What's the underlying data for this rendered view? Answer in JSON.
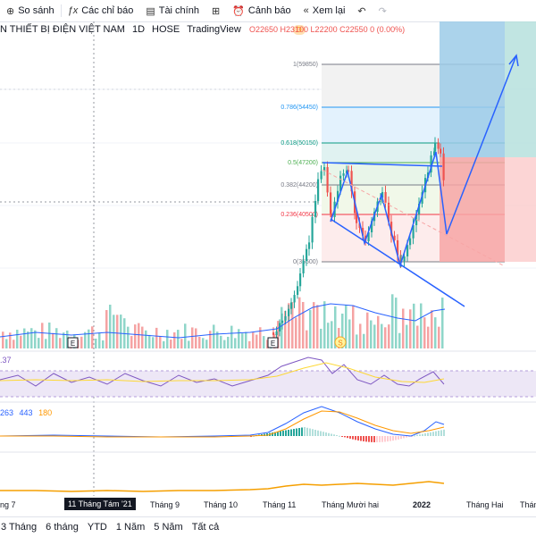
{
  "toolbar": {
    "compare": "So sánh",
    "indicators": "Các chỉ báo",
    "financials": "Tài chính",
    "alerts": "Cảnh báo",
    "replay": "Xem lại",
    "icons": [
      "plus-circle-icon",
      "fx-icon",
      "chart-icon",
      "grid-icon",
      "alarm-icon",
      "rewind-icon",
      "undo-icon",
      "redo-icon"
    ]
  },
  "legend": {
    "name": "N THIẾT BỊ ĐIỆN VIỆT NAM",
    "interval": "1D",
    "exchange": "HOSE",
    "source": "TradingView",
    "badge": "D"
  },
  "ohlc": "O22650 H23100 L22200 C22550 0 (0.00%)",
  "fib_levels": [
    {
      "label": "1(59850)",
      "color": "#787b86"
    },
    {
      "label": "0.786(54450)",
      "color": "#2196f3"
    },
    {
      "label": "0.618(50150)",
      "color": "#089981"
    },
    {
      "label": "0.5(47200)",
      "color": "#4caf50"
    },
    {
      "label": "0.382(44200)",
      "color": "#787b86"
    },
    {
      "label": "0.236(40500)",
      "color": "#f23645"
    },
    {
      "label": "0(35500)",
      "color": "#787b86"
    }
  ],
  "indicators": {
    "rsi_value": ".37",
    "macd": [
      "263",
      "443",
      "180"
    ]
  },
  "markers": {
    "event_e": "E",
    "split_s": "S"
  },
  "time_axis": [
    "ng 7",
    "Tháng 9",
    "Tháng 10",
    "Tháng 11",
    "Tháng Mười hai",
    "2022",
    "Tháng Hai",
    "Thán"
  ],
  "crosshair_date": "11 Tháng Tám '21",
  "ranges": [
    "3 Tháng",
    "6 tháng",
    "YTD",
    "1 Năm",
    "5 Năm",
    "Tất cả"
  ],
  "colors": {
    "up": "#26a69a",
    "down": "#ef5350",
    "trend": "#2962ff",
    "macd": "#2962ff",
    "signal": "#ff9800"
  }
}
